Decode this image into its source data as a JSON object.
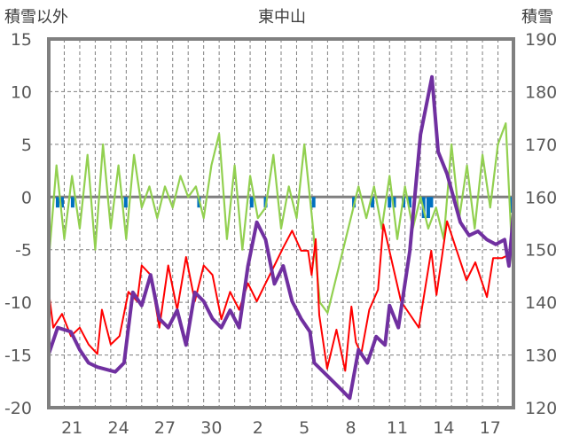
{
  "chart_data": {
    "type": "line",
    "title": "東中山",
    "ylabel_left": "積雪以外",
    "ylabel_right": "積雪",
    "x_unit": "days since start of day 20",
    "xlim": [
      0,
      30
    ],
    "ylim_left": [
      -20,
      15
    ],
    "ylim_right": [
      120,
      190
    ],
    "yticks_left": [
      15,
      10,
      5,
      0,
      -5,
      -10,
      -15,
      -20
    ],
    "yticks_right": [
      190,
      180,
      170,
      160,
      150,
      140,
      130,
      120
    ],
    "xtick_labels": [
      {
        "label": "21",
        "day": 1.5
      },
      {
        "label": "24",
        "day": 4.5
      },
      {
        "label": "27",
        "day": 7.5
      },
      {
        "label": "30",
        "day": 10.5
      },
      {
        "label": "2",
        "day": 13.5
      },
      {
        "label": "5",
        "day": 16.5
      },
      {
        "label": "8",
        "day": 19.5
      },
      {
        "label": "11",
        "day": 22.5
      },
      {
        "label": "14",
        "day": 25.5
      },
      {
        "label": "17",
        "day": 28.5
      }
    ],
    "grid": true,
    "series": [
      {
        "name": "green",
        "axis": "left",
        "color": "#92d050",
        "step": 0.5,
        "values": [
          -6,
          3,
          -4,
          2,
          -3,
          4,
          -5,
          5,
          -3,
          3,
          -4,
          4,
          -1,
          1,
          -2,
          1,
          -1,
          2,
          0,
          1,
          -2,
          3,
          6,
          -4,
          3,
          -5,
          2,
          -2,
          -1,
          4,
          -3,
          1,
          -2,
          5,
          -2,
          -10,
          -11,
          -8,
          -5,
          -2,
          1,
          -2,
          1,
          -3,
          2,
          -4,
          1,
          -3,
          0,
          -3,
          -1,
          -4,
          5,
          -2,
          3,
          -3,
          4,
          -1,
          5,
          7,
          -8
        ]
      },
      {
        "name": "red",
        "axis": "left",
        "color": "#ff0000",
        "points": [
          [
            0,
            -9
          ],
          [
            0.29,
            -12.4
          ],
          [
            0.86,
            -11.1
          ],
          [
            1.43,
            -13.2
          ],
          [
            2.0,
            -12.4
          ],
          [
            2.57,
            -14
          ],
          [
            3.14,
            -14.9
          ],
          [
            3.43,
            -10.7
          ],
          [
            4.0,
            -14
          ],
          [
            4.57,
            -13.2
          ],
          [
            5.14,
            -9
          ],
          [
            5.71,
            -9.9
          ],
          [
            6.0,
            -6.5
          ],
          [
            6.57,
            -7.4
          ],
          [
            7.14,
            -12.4
          ],
          [
            7.71,
            -6.5
          ],
          [
            8.29,
            -10.7
          ],
          [
            8.86,
            -5.7
          ],
          [
            9.43,
            -9.9
          ],
          [
            10.0,
            -6.5
          ],
          [
            10.57,
            -7.4
          ],
          [
            11.14,
            -11.6
          ],
          [
            11.71,
            -9
          ],
          [
            12.29,
            -10.7
          ],
          [
            12.86,
            -8.2
          ],
          [
            13.43,
            -9.9
          ],
          [
            14.0,
            -8.2
          ],
          [
            14.57,
            -6.5
          ],
          [
            15.14,
            -4.8
          ],
          [
            15.71,
            -3.2
          ],
          [
            16.29,
            -5.1
          ],
          [
            16.74,
            -5.1
          ],
          [
            16.97,
            -7.4
          ],
          [
            17.23,
            -4
          ],
          [
            17.46,
            -11.2
          ],
          [
            17.97,
            -16.3
          ],
          [
            18.57,
            -12.6
          ],
          [
            19.14,
            -16.5
          ],
          [
            19.54,
            -10.4
          ],
          [
            19.83,
            -13.8
          ],
          [
            20.17,
            -14.9
          ],
          [
            20.69,
            -10.7
          ],
          [
            21.26,
            -8.8
          ],
          [
            21.6,
            -2.6
          ],
          [
            22.74,
            -9.9
          ],
          [
            23.89,
            -12.4
          ],
          [
            24.69,
            -5.1
          ],
          [
            25.03,
            -9.3
          ],
          [
            25.71,
            -2.3
          ],
          [
            26.97,
            -7.9
          ],
          [
            27.54,
            -6.2
          ],
          [
            28.29,
            -9.5
          ],
          [
            28.69,
            -5.8
          ],
          [
            29.26,
            -5.8
          ],
          [
            29.83,
            -5.4
          ]
        ]
      },
      {
        "name": "purple",
        "axis": "right",
        "color": "#7030a0",
        "points": [
          [
            0,
            130.2
          ],
          [
            0.57,
            135.2
          ],
          [
            1.43,
            134.4
          ],
          [
            2.0,
            131
          ],
          [
            2.57,
            128.5
          ],
          [
            3.14,
            127.7
          ],
          [
            4.29,
            126.8
          ],
          [
            4.86,
            128.5
          ],
          [
            5.43,
            141.9
          ],
          [
            6.0,
            139.4
          ],
          [
            6.57,
            145.2
          ],
          [
            7.14,
            136.9
          ],
          [
            7.71,
            135.2
          ],
          [
            8.29,
            138.5
          ],
          [
            8.86,
            131.9
          ],
          [
            9.43,
            141.9
          ],
          [
            10.0,
            140.2
          ],
          [
            10.57,
            136.9
          ],
          [
            11.14,
            135.2
          ],
          [
            11.71,
            138.5
          ],
          [
            12.29,
            135.2
          ],
          [
            12.86,
            146.9
          ],
          [
            13.43,
            155.2
          ],
          [
            14.0,
            151.9
          ],
          [
            14.57,
            143.5
          ],
          [
            15.14,
            146.9
          ],
          [
            15.71,
            140.2
          ],
          [
            16.29,
            136.9
          ],
          [
            16.86,
            134.4
          ],
          [
            17.14,
            128.5
          ],
          [
            18.0,
            126
          ],
          [
            18.86,
            123.5
          ],
          [
            19.43,
            121.8
          ],
          [
            20.0,
            131
          ],
          [
            20.57,
            128.5
          ],
          [
            21.14,
            133.5
          ],
          [
            21.71,
            131.9
          ],
          [
            22.0,
            139.4
          ],
          [
            22.57,
            135.2
          ],
          [
            23.31,
            149.7
          ],
          [
            24.0,
            171.9
          ],
          [
            24.74,
            182.8
          ],
          [
            25.14,
            168.6
          ],
          [
            25.71,
            164.4
          ],
          [
            26.57,
            155.2
          ],
          [
            27.14,
            152.7
          ],
          [
            27.71,
            153.5
          ],
          [
            28.29,
            151.9
          ],
          [
            28.86,
            151
          ],
          [
            29.43,
            151.9
          ],
          [
            29.71,
            146.9
          ],
          [
            30,
            156.9
          ]
        ]
      },
      {
        "name": "blue-bars",
        "axis": "left",
        "type": "bar",
        "color": "#0070c0",
        "points": [
          [
            0.57,
            -1
          ],
          [
            0.86,
            -1
          ],
          [
            1.54,
            -1
          ],
          [
            4.97,
            -1
          ],
          [
            9.7,
            -1
          ],
          [
            13.1,
            -1
          ],
          [
            14.0,
            -1
          ],
          [
            17.1,
            -1
          ],
          [
            19.7,
            -1
          ],
          [
            20.9,
            -1
          ],
          [
            22.0,
            -1
          ],
          [
            22.3,
            -1
          ],
          [
            22.9,
            -1
          ],
          [
            23.3,
            -1
          ],
          [
            24.2,
            -2
          ],
          [
            24.5,
            -2
          ],
          [
            24.7,
            -1
          ],
          [
            29.9,
            -1.5
          ]
        ]
      }
    ]
  }
}
